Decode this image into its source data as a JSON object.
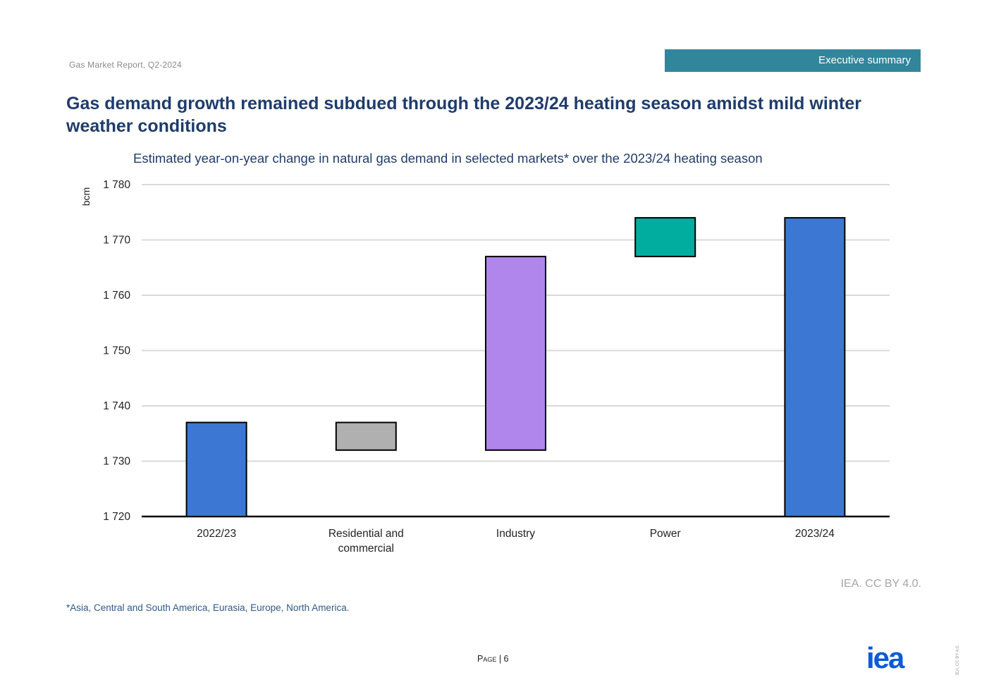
{
  "header": {
    "report_name": "Gas Market Report, Q2-2024",
    "section": "Executive summary"
  },
  "headline": "Gas demand growth remained subdued through the 2023/24 heating season amidst mild winter weather conditions",
  "chart_data": {
    "type": "waterfall",
    "title": "Estimated year-on-year change in natural gas demand in selected markets* over the 2023/24 heating season",
    "ylabel": "bcm",
    "xlabel": "",
    "ylim": [
      1720,
      1780
    ],
    "yticks": [
      1720,
      1730,
      1740,
      1750,
      1760,
      1770,
      1780
    ],
    "ytick_labels": [
      "1 720",
      "1 730",
      "1 740",
      "1 750",
      "1 760",
      "1 770",
      "1 780"
    ],
    "grid": true,
    "categories": [
      "2022/23",
      "Residential and commercial",
      "Industry",
      "Power",
      "2023/24"
    ],
    "category_lines": [
      [
        "2022/23"
      ],
      [
        "Residential and",
        "commercial"
      ],
      [
        "Industry"
      ],
      [
        "Power"
      ],
      [
        "2023/24"
      ]
    ],
    "bars": [
      {
        "category": "2022/23",
        "kind": "total",
        "start": 1720,
        "end": 1737,
        "color": "#3c78d3"
      },
      {
        "category": "Residential and commercial",
        "kind": "change",
        "start": 1737,
        "end": 1732,
        "color": "#b0b0b0"
      },
      {
        "category": "Industry",
        "kind": "change",
        "start": 1732,
        "end": 1767,
        "color": "#b085ec"
      },
      {
        "category": "Power",
        "kind": "change",
        "start": 1767,
        "end": 1774,
        "color": "#00ad9f"
      },
      {
        "category": "2023/24",
        "kind": "total",
        "start": 1720,
        "end": 1774,
        "color": "#3c78d3"
      }
    ]
  },
  "credit": "IEA. CC BY 4.0.",
  "footnote": "*Asia, Central and South America, Eurasia, Europe, North America.",
  "footer": {
    "page_word": "Page",
    "page_sep": " | ",
    "page_number": "6",
    "logo_text": "iea",
    "side_license": "IEA. CC BY 4.0."
  },
  "colors": {
    "accent": "#31869b",
    "headline": "#1f3c6b",
    "logo": "#0b5bd9"
  }
}
